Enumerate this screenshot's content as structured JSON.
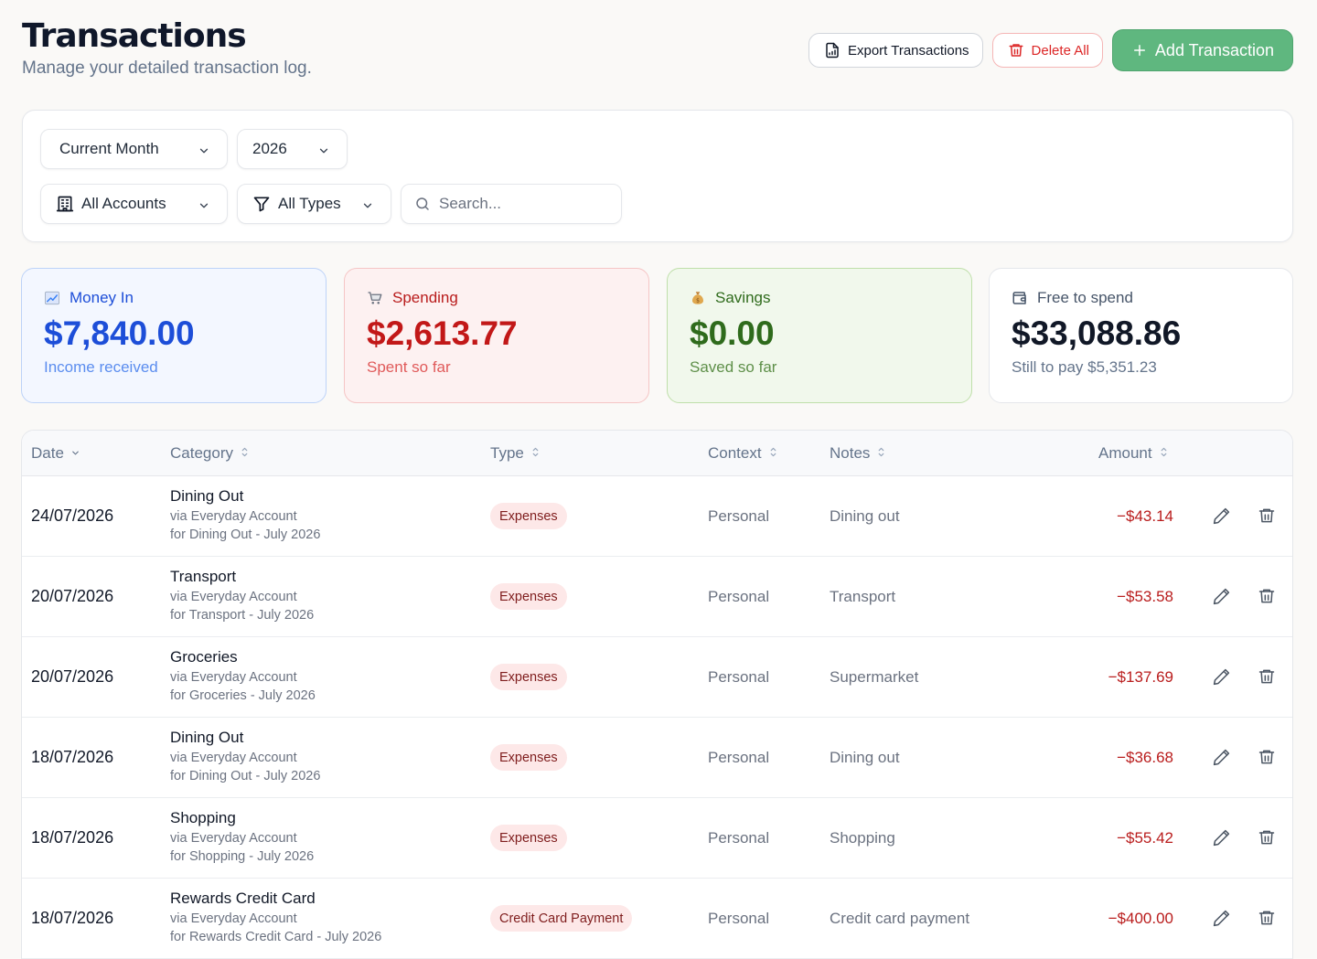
{
  "header": {
    "title": "Transactions",
    "subtitle": "Manage your detailed transaction log."
  },
  "actions": {
    "export_label": "Export Transactions",
    "delete_label": "Delete All",
    "add_label": "Add Transaction"
  },
  "filters": {
    "period": "Current Month",
    "year": "2026",
    "accounts": "All Accounts",
    "types": "All Types",
    "search_placeholder": "Search..."
  },
  "summary": {
    "money_in": {
      "label": "Money In",
      "value": "$7,840.00",
      "sub": "Income received",
      "icon": "chart-up-icon"
    },
    "spending": {
      "label": "Spending",
      "value": "$2,613.77",
      "sub": "Spent so far",
      "icon": "cart-icon"
    },
    "savings": {
      "label": "Savings",
      "value": "$0.00",
      "sub": "Saved so far",
      "icon": "money-bag-icon"
    },
    "free": {
      "label": "Free to spend",
      "value": "$33,088.86",
      "sub": "Still to pay $5,351.23",
      "icon": "wallet-icon"
    }
  },
  "table": {
    "columns": {
      "date": "Date",
      "category": "Category",
      "type": "Type",
      "context": "Context",
      "notes": "Notes",
      "amount": "Amount"
    },
    "rows": [
      {
        "date": "24/07/2026",
        "category": "Dining Out",
        "via": "via Everyday Account",
        "for": "for Dining Out - July 2026",
        "type": "Expenses",
        "context": "Personal",
        "notes": "Dining out",
        "amount": "−$43.14"
      },
      {
        "date": "20/07/2026",
        "category": "Transport",
        "via": "via Everyday Account",
        "for": "for Transport - July 2026",
        "type": "Expenses",
        "context": "Personal",
        "notes": "Transport",
        "amount": "−$53.58"
      },
      {
        "date": "20/07/2026",
        "category": "Groceries",
        "via": "via Everyday Account",
        "for": "for Groceries - July 2026",
        "type": "Expenses",
        "context": "Personal",
        "notes": "Supermarket",
        "amount": "−$137.69"
      },
      {
        "date": "18/07/2026",
        "category": "Dining Out",
        "via": "via Everyday Account",
        "for": "for Dining Out - July 2026",
        "type": "Expenses",
        "context": "Personal",
        "notes": "Dining out",
        "amount": "−$36.68"
      },
      {
        "date": "18/07/2026",
        "category": "Shopping",
        "via": "via Everyday Account",
        "for": "for Shopping - July 2026",
        "type": "Expenses",
        "context": "Personal",
        "notes": "Shopping",
        "amount": "−$55.42"
      },
      {
        "date": "18/07/2026",
        "category": "Rewards Credit Card",
        "via": "via Everyday Account",
        "for": "for Rewards Credit Card - July 2026",
        "type": "Credit Card Payment",
        "context": "Personal",
        "notes": "Credit card payment",
        "amount": "−$400.00"
      }
    ]
  }
}
